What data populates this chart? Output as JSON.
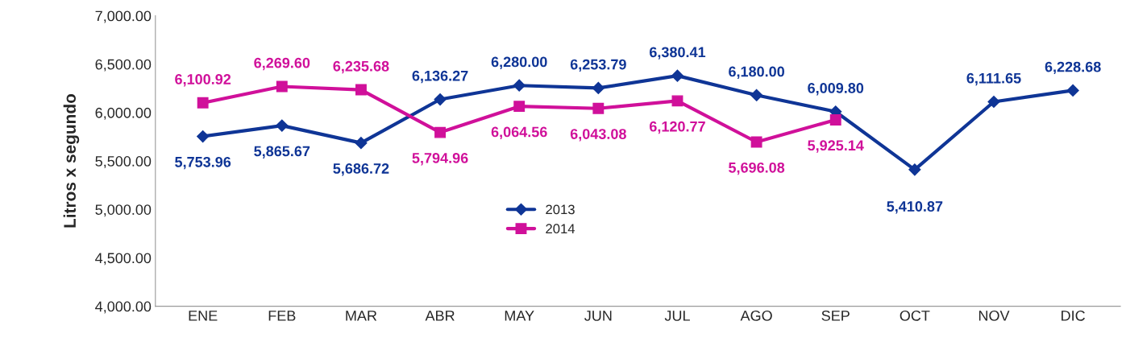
{
  "chart_data": {
    "type": "line",
    "ylabel": "Litros x segundo",
    "categories": [
      "ENE",
      "FEB",
      "MAR",
      "ABR",
      "MAY",
      "JUN",
      "JUL",
      "AGO",
      "SEP",
      "OCT",
      "NOV",
      "DIC"
    ],
    "ylim": [
      4000,
      7000
    ],
    "yticks": [
      {
        "value": 4000,
        "label": "4,000.00"
      },
      {
        "value": 4500,
        "label": "4,500.00"
      },
      {
        "value": 5000,
        "label": "5,000.00"
      },
      {
        "value": 5500,
        "label": "5,500.00"
      },
      {
        "value": 6000,
        "label": "6,000.00"
      },
      {
        "value": 6500,
        "label": "6,500.00"
      },
      {
        "value": 7000,
        "label": "7,000.00"
      }
    ],
    "grid": false,
    "legend": "bottom",
    "series": [
      {
        "name": "2013",
        "color": "#0f3596",
        "marker": "diamond",
        "values": [
          5753.96,
          5865.67,
          5686.72,
          6136.27,
          6280.0,
          6253.79,
          6380.41,
          6180.0,
          6009.8,
          5410.87,
          6111.65,
          6228.68
        ],
        "value_labels": [
          "5,753.96",
          "5,865.67",
          "5,686.72",
          "6,136.27",
          "6,280.00",
          "6,253.79",
          "6,380.41",
          "6,180.00",
          "6,009.80",
          "5,410.87",
          "6,111.65",
          "6,228.68"
        ]
      },
      {
        "name": "2014",
        "color": "#d0109a",
        "marker": "square",
        "values": [
          6100.92,
          6269.6,
          6235.68,
          5794.96,
          6064.56,
          6043.08,
          6120.77,
          5696.08,
          5925.14,
          null,
          null,
          null
        ],
        "value_labels": [
          "6,100.92",
          "6,269.60",
          "6,235.68",
          "5,794.96",
          "6,064.56",
          "6,043.08",
          "6,120.77",
          "5,696.08",
          "5,925.14",
          null,
          null,
          null
        ]
      }
    ]
  }
}
